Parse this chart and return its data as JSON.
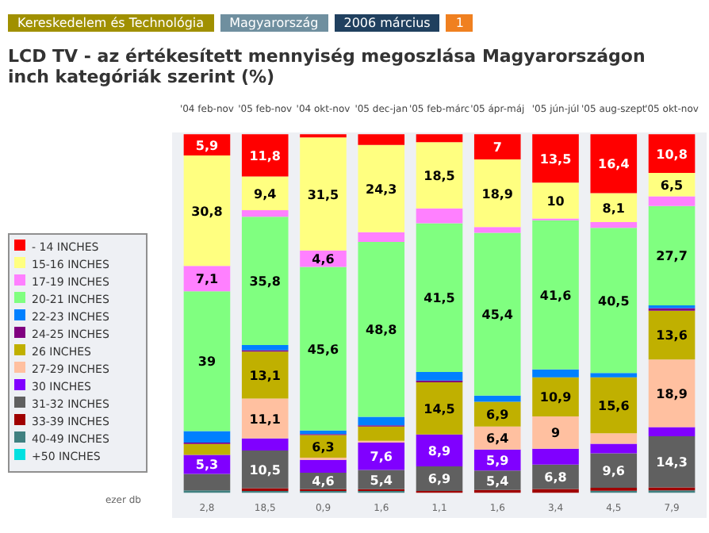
{
  "chart_data": {
    "type": "bar",
    "stacked": true,
    "title": "LCD TV - az értékesített mennyiség megoszlása Magyarországon\ninch kategóriák szerint (%)",
    "categories": [
      "'04 feb-nov",
      "'05 feb-nov",
      "'04 okt-nov",
      "'05 dec-jan",
      "'05 feb-márc",
      "'05 ápr-máj",
      "'05 jún-júl",
      "'05 aug-szept",
      "'05 okt-nov"
    ],
    "legend": "left",
    "series": [
      {
        "name": "+50 INCHES",
        "color": "#00e0e0",
        "values": [
          null,
          null,
          null,
          null,
          null,
          null,
          null,
          null,
          null
        ],
        "value_labels": [
          null,
          null,
          null,
          null,
          null,
          null,
          null,
          null,
          null
        ]
      },
      {
        "name": "40-49 INCHES",
        "color": "#408080",
        "values": [
          0.7,
          0.5,
          0.5,
          0.5,
          null,
          null,
          null,
          0.6,
          0.7
        ],
        "value_labels": [
          null,
          null,
          null,
          null,
          null,
          null,
          null,
          null,
          null
        ]
      },
      {
        "name": "33-39 INCHES",
        "color": "#a00000",
        "values": [
          null,
          0.8,
          0.5,
          0.5,
          0.5,
          0.8,
          1.1,
          0.8,
          0.8
        ],
        "value_labels": [
          null,
          null,
          null,
          null,
          null,
          null,
          null,
          null,
          null
        ]
      },
      {
        "name": "31-32 INCHES",
        "color": "#606060",
        "values": [
          4.6,
          10.5,
          4.6,
          5.4,
          6.9,
          5.4,
          6.8,
          9.6,
          14.3
        ],
        "value_labels": [
          null,
          "10,5",
          "4,6",
          "5,4",
          "6,9",
          "5,4",
          "6,8",
          "9,6",
          "14,3"
        ]
      },
      {
        "name": "30 INCHES",
        "color": "#8000ff",
        "values": [
          5.3,
          3.4,
          3.6,
          7.6,
          8.9,
          5.9,
          4.4,
          2.7,
          2.5
        ],
        "value_labels": [
          "5,3",
          null,
          null,
          "7,6",
          "8,9",
          "5,9",
          null,
          null,
          null
        ]
      },
      {
        "name": "27-29 INCHES",
        "color": "#ffc0a0",
        "values": [
          null,
          11.1,
          0.6,
          0.5,
          null,
          6.4,
          9,
          2.9,
          18.9
        ],
        "value_labels": [
          null,
          "11,1",
          null,
          null,
          null,
          "6,4",
          "9",
          null,
          "18,9"
        ]
      },
      {
        "name": "26 INCHES",
        "color": "#c0b000",
        "values": [
          3.0,
          13.1,
          6.3,
          4.0,
          14.5,
          6.9,
          10.9,
          15.6,
          13.6
        ],
        "value_labels": [
          null,
          "13,1",
          "6,3",
          null,
          "14,5",
          "6,9",
          "10,9",
          "15,6",
          "13,6"
        ]
      },
      {
        "name": "24-25 INCHES",
        "color": "#800080",
        "values": [
          0.4,
          0.4,
          0.3,
          0.3,
          0.5,
          null,
          null,
          null,
          0.7
        ],
        "value_labels": [
          null,
          null,
          null,
          null,
          null,
          null,
          null,
          null,
          null
        ]
      },
      {
        "name": "22-23 INCHES",
        "color": "#0080ff",
        "values": [
          3.2,
          1.4,
          1.0,
          2.4,
          2.4,
          1.7,
          2.2,
          1.2,
          0.8
        ],
        "value_labels": [
          null,
          null,
          null,
          null,
          null,
          null,
          null,
          null,
          null
        ]
      },
      {
        "name": "20-21 INCHES",
        "color": "#80ff80",
        "values": [
          39,
          35.8,
          45.6,
          48.8,
          41.5,
          45.4,
          41.6,
          40.5,
          27.7
        ],
        "value_labels": [
          "39",
          "35,8",
          "45,6",
          "48,8",
          "41,5",
          "45,4",
          "41,6",
          "40,5",
          "27,7"
        ]
      },
      {
        "name": "17-19 INCHES",
        "color": "#ff80ff",
        "values": [
          7.1,
          1.8,
          4.6,
          2.7,
          4.1,
          1.6,
          0.5,
          1.6,
          2.7
        ],
        "value_labels": [
          "7,1",
          null,
          "4,6",
          null,
          null,
          null,
          null,
          null,
          null
        ]
      },
      {
        "name": "15-16 INCHES",
        "color": "#ffff80",
        "values": [
          30.8,
          9.4,
          31.5,
          24.3,
          18.5,
          18.9,
          10,
          8.1,
          6.5
        ],
        "value_labels": [
          "30,8",
          "9,4",
          "31,5",
          "24,3",
          "18,5",
          "18,9",
          "10",
          "8,1",
          "6,5"
        ]
      },
      {
        "name": "- 14 INCHES",
        "color": "#ff0000",
        "values": [
          5.9,
          11.8,
          0.9,
          3.0,
          2.2,
          7,
          13.5,
          16.4,
          10.8
        ],
        "value_labels": [
          "5,9",
          "11,8",
          null,
          null,
          null,
          "7",
          "13,5",
          "16,4",
          "10,8"
        ]
      }
    ],
    "annotations": [
      "Kereskedelem és Technológia",
      "Magyarország",
      "2006 március",
      "1",
      "ezer db",
      "2,8",
      "18,5",
      "0,9",
      "1,6",
      "1,1",
      "1,6",
      "3,4",
      "4,5",
      "7,9"
    ]
  }
}
